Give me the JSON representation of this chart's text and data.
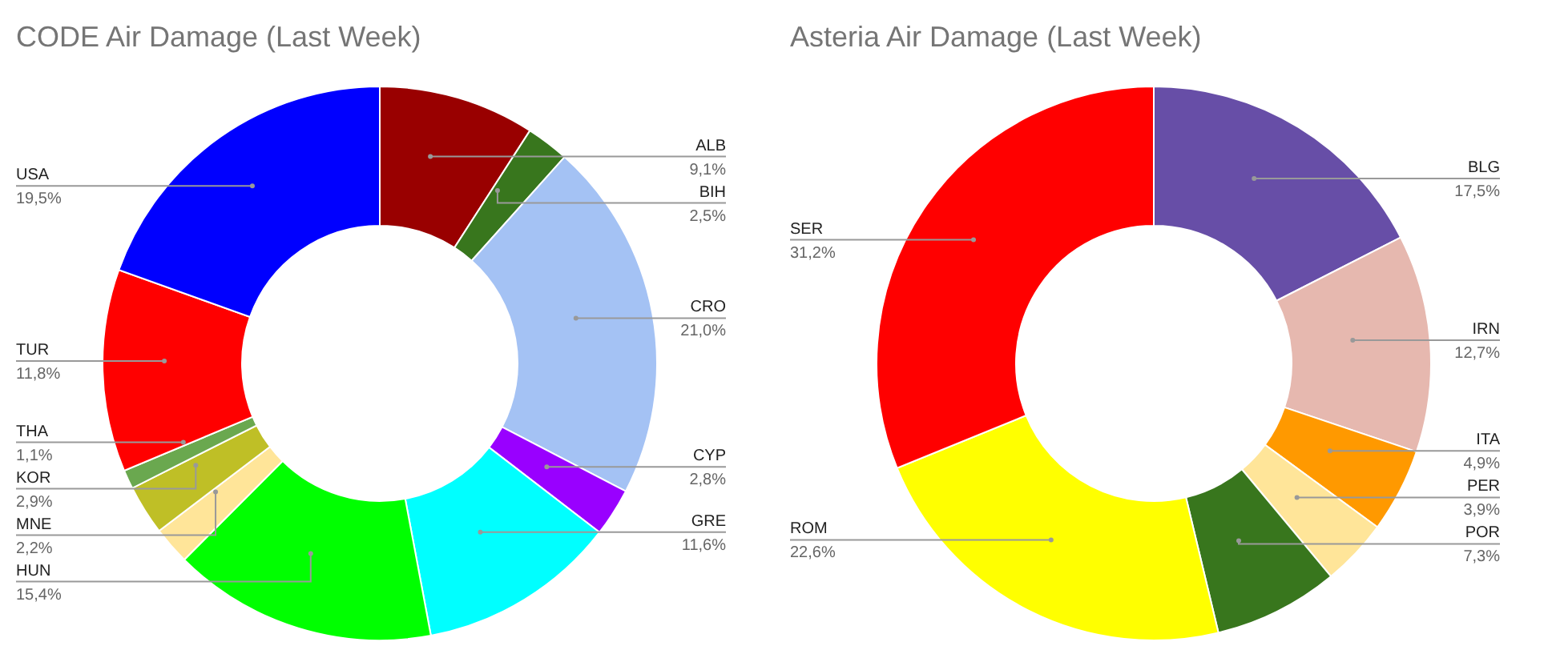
{
  "chart_data": [
    {
      "type": "donut",
      "title": "CODE Air Damage (Last Week)",
      "categories": [
        "ALB",
        "BIH",
        "CRO",
        "CYP",
        "GRE",
        "HUN",
        "MNE",
        "KOR",
        "THA",
        "TUR",
        "USA"
      ],
      "values": [
        9.1,
        2.5,
        21.0,
        2.8,
        11.6,
        15.4,
        2.2,
        2.9,
        1.1,
        11.8,
        19.5
      ],
      "colors": [
        "#990000",
        "#38761d",
        "#a4c2f4",
        "#9900ff",
        "#00ffff",
        "#00ff00",
        "#ffe599",
        "#bfbf26",
        "#6aa84f",
        "#ff0000",
        "#0000ff"
      ],
      "value_labels": [
        "9,1%",
        "2,5%",
        "21,0%",
        "2,8%",
        "11,6%",
        "15,4%",
        "2,2%",
        "2,9%",
        "1,1%",
        "11,8%",
        "19,5%"
      ]
    },
    {
      "type": "donut",
      "title": "Asteria Air Damage (Last Week)",
      "categories": [
        "BLG",
        "IRN",
        "ITA",
        "PER",
        "POR",
        "ROM",
        "SER"
      ],
      "values": [
        17.5,
        12.7,
        4.9,
        3.9,
        7.3,
        22.6,
        31.2
      ],
      "colors": [
        "#674ea7",
        "#e6b8af",
        "#ff9900",
        "#ffe599",
        "#38761d",
        "#ffff00",
        "#ff0000"
      ],
      "value_labels": [
        "17,5%",
        "12,7%",
        "4,9%",
        "3,9%",
        "7,3%",
        "22,6%",
        "31,2%"
      ]
    }
  ]
}
